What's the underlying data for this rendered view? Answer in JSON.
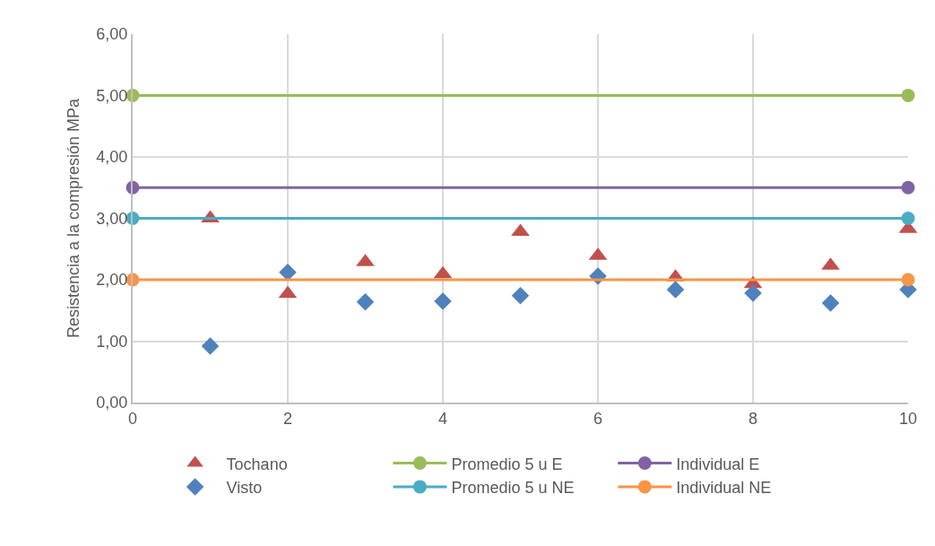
{
  "chart_data": {
    "type": "scatter",
    "ylabel": "Resistencia a la compresión MPa",
    "xlim": [
      0,
      10
    ],
    "xticks": [
      0,
      2,
      4,
      6,
      8,
      10
    ],
    "ylim": [
      0,
      6
    ],
    "yticks": [
      {
        "value": 0,
        "label": "0,00"
      },
      {
        "value": 1,
        "label": "1,00"
      },
      {
        "value": 2,
        "label": "2,00"
      },
      {
        "value": 3,
        "label": "3,00"
      },
      {
        "value": 4,
        "label": "4,00"
      },
      {
        "value": 5,
        "label": "5,00"
      },
      {
        "value": 6,
        "label": "6,00"
      }
    ],
    "grid": true,
    "legend": "bottom",
    "series": [
      {
        "name": "Tochano",
        "marker": "triangle",
        "color": "#c0504d",
        "x": [
          1,
          2,
          3,
          4,
          5,
          6,
          7,
          8,
          9,
          10
        ],
        "values": [
          3.0,
          1.77,
          2.29,
          2.09,
          2.78,
          2.39,
          2.04,
          1.93,
          2.23,
          2.83
        ]
      },
      {
        "name": "Promedio 5 u E",
        "type": "line",
        "marker": "circle",
        "color": "#9bbb59",
        "x": [
          0,
          10
        ],
        "values": [
          5,
          5
        ]
      },
      {
        "name": "Individual E",
        "type": "line",
        "marker": "circle",
        "color": "#8064a2",
        "x": [
          0,
          10
        ],
        "values": [
          3.5,
          3.5
        ]
      },
      {
        "name": "Visto",
        "marker": "diamond",
        "color": "#4f81bd",
        "x": [
          1,
          2,
          3,
          4,
          5,
          6,
          7,
          8,
          9,
          10
        ],
        "values": [
          0.92,
          2.12,
          1.64,
          1.65,
          1.74,
          2.06,
          1.84,
          1.78,
          1.62,
          1.84
        ]
      },
      {
        "name": "Promedio 5 u NE",
        "type": "line",
        "marker": "circle",
        "color": "#4bacc6",
        "x": [
          0,
          10
        ],
        "values": [
          3,
          3
        ]
      },
      {
        "name": "Individual NE",
        "type": "line",
        "marker": "circle",
        "color": "#f79646",
        "x": [
          0,
          10
        ],
        "values": [
          2,
          2
        ]
      }
    ]
  }
}
